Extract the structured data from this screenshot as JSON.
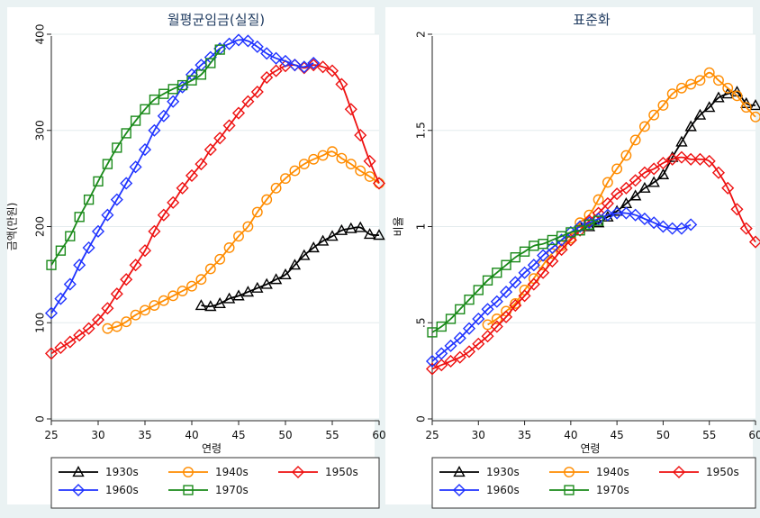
{
  "chart_data": [
    {
      "type": "line",
      "title": "월평균임금(실질)",
      "xlabel": "연령",
      "ylabel": "금액(만원)",
      "xlim": [
        25,
        60
      ],
      "ylim": [
        0,
        400
      ],
      "xticks": [
        "25",
        "30",
        "35",
        "40",
        "45",
        "50",
        "55",
        "60"
      ],
      "yticks": [
        "0",
        "100",
        "200",
        "300",
        "400"
      ],
      "grid": true,
      "legend_position": "bottom",
      "series": [
        {
          "name": "1930s",
          "color": "#000000",
          "marker": "triangle",
          "x": [
            41,
            42,
            43,
            44,
            45,
            46,
            47,
            48,
            49,
            50,
            51,
            52,
            53,
            54,
            55,
            56,
            57,
            58,
            59,
            60
          ],
          "y": [
            118,
            117,
            120,
            125,
            128,
            132,
            136,
            140,
            145,
            150,
            160,
            170,
            178,
            185,
            190,
            196,
            198,
            199,
            192,
            191
          ]
        },
        {
          "name": "1940s",
          "color": "#ff8c00",
          "marker": "circle",
          "x": [
            31,
            32,
            33,
            34,
            35,
            36,
            37,
            38,
            39,
            40,
            41,
            42,
            43,
            44,
            45,
            46,
            47,
            48,
            49,
            50,
            51,
            52,
            53,
            54,
            55,
            56,
            57,
            58,
            59,
            60
          ],
          "y": [
            94,
            96,
            101,
            108,
            113,
            118,
            123,
            128,
            133,
            138,
            145,
            156,
            166,
            178,
            190,
            200,
            215,
            228,
            240,
            250,
            258,
            265,
            270,
            274,
            278,
            271,
            265,
            258,
            252,
            245
          ]
        },
        {
          "name": "1950s",
          "color": "#ee1111",
          "marker": "diamond",
          "x": [
            25,
            26,
            27,
            28,
            29,
            30,
            31,
            32,
            33,
            34,
            35,
            36,
            37,
            38,
            39,
            40,
            41,
            42,
            43,
            44,
            45,
            46,
            47,
            48,
            49,
            50,
            51,
            52,
            53,
            54,
            55,
            56,
            57,
            58,
            59,
            60
          ],
          "y": [
            68,
            74,
            80,
            87,
            94,
            103,
            115,
            130,
            145,
            160,
            175,
            195,
            212,
            225,
            240,
            253,
            265,
            280,
            292,
            305,
            318,
            330,
            340,
            355,
            362,
            367,
            368,
            365,
            368,
            366,
            362,
            348,
            322,
            295,
            268,
            245
          ]
        },
        {
          "name": "1960s",
          "color": "#1f33ff",
          "marker": "diamond",
          "x": [
            25,
            26,
            27,
            28,
            29,
            30,
            31,
            32,
            33,
            34,
            35,
            36,
            37,
            38,
            39,
            40,
            41,
            42,
            43,
            44,
            45,
            46,
            47,
            48,
            49,
            50,
            51,
            52,
            53
          ],
          "y": [
            110,
            125,
            140,
            160,
            178,
            195,
            212,
            228,
            245,
            262,
            280,
            300,
            315,
            330,
            345,
            358,
            368,
            376,
            385,
            390,
            394,
            393,
            387,
            380,
            375,
            372,
            368,
            366,
            370
          ]
        },
        {
          "name": "1970s",
          "color": "#1a8a1a",
          "marker": "square",
          "x": [
            25,
            26,
            27,
            28,
            29,
            30,
            31,
            32,
            33,
            34,
            35,
            36,
            37,
            38,
            39,
            40,
            41,
            42,
            43
          ],
          "y": [
            160,
            175,
            190,
            210,
            228,
            247,
            265,
            282,
            297,
            310,
            322,
            332,
            338,
            343,
            347,
            352,
            358,
            370,
            384
          ]
        }
      ]
    },
    {
      "type": "line",
      "title": "표준화",
      "xlabel": "연령",
      "ylabel": "비율",
      "xlim": [
        25,
        60
      ],
      "ylim": [
        0,
        2
      ],
      "xticks": [
        "25",
        "30",
        "35",
        "40",
        "45",
        "50",
        "55",
        "60"
      ],
      "yticks": [
        "0",
        ".5",
        "1",
        "1.5",
        "2"
      ],
      "grid": true,
      "legend_position": "bottom",
      "series": [
        {
          "name": "1930s",
          "color": "#000000",
          "marker": "triangle",
          "x": [
            41,
            42,
            43,
            44,
            45,
            46,
            47,
            48,
            49,
            50,
            51,
            52,
            53,
            54,
            55,
            56,
            57,
            58,
            59,
            60
          ],
          "y": [
            1.0,
            1.0,
            1.02,
            1.05,
            1.08,
            1.12,
            1.16,
            1.2,
            1.23,
            1.27,
            1.36,
            1.44,
            1.52,
            1.58,
            1.62,
            1.67,
            1.69,
            1.7,
            1.64,
            1.63
          ]
        },
        {
          "name": "1940s",
          "color": "#ff8c00",
          "marker": "circle",
          "x": [
            31,
            32,
            33,
            34,
            35,
            36,
            37,
            38,
            39,
            40,
            41,
            42,
            43,
            44,
            45,
            46,
            47,
            48,
            49,
            50,
            51,
            52,
            53,
            54,
            55,
            56,
            57,
            58,
            59,
            60
          ],
          "y": [
            0.49,
            0.52,
            0.56,
            0.6,
            0.67,
            0.73,
            0.8,
            0.86,
            0.9,
            0.94,
            1.02,
            1.06,
            1.14,
            1.23,
            1.3,
            1.37,
            1.45,
            1.52,
            1.58,
            1.63,
            1.69,
            1.72,
            1.74,
            1.76,
            1.8,
            1.76,
            1.72,
            1.68,
            1.62,
            1.57
          ]
        },
        {
          "name": "1950s",
          "color": "#ee1111",
          "marker": "diamond",
          "x": [
            25,
            26,
            27,
            28,
            29,
            30,
            31,
            32,
            33,
            34,
            35,
            36,
            37,
            38,
            39,
            40,
            41,
            42,
            43,
            44,
            45,
            46,
            47,
            48,
            49,
            50,
            51,
            52,
            53,
            54,
            55,
            56,
            57,
            58,
            59,
            60
          ],
          "y": [
            0.26,
            0.28,
            0.3,
            0.32,
            0.35,
            0.39,
            0.43,
            0.48,
            0.53,
            0.59,
            0.64,
            0.7,
            0.76,
            0.82,
            0.88,
            0.93,
            0.98,
            1.03,
            1.07,
            1.12,
            1.17,
            1.2,
            1.24,
            1.28,
            1.3,
            1.33,
            1.35,
            1.36,
            1.35,
            1.35,
            1.34,
            1.28,
            1.2,
            1.09,
            0.99,
            0.92
          ]
        },
        {
          "name": "1960s",
          "color": "#1f33ff",
          "marker": "diamond",
          "x": [
            25,
            26,
            27,
            28,
            29,
            30,
            31,
            32,
            33,
            34,
            35,
            36,
            37,
            38,
            39,
            40,
            41,
            42,
            43,
            44,
            45,
            46,
            47,
            48,
            49,
            50,
            51,
            52,
            53
          ],
          "y": [
            0.3,
            0.34,
            0.38,
            0.42,
            0.47,
            0.52,
            0.57,
            0.61,
            0.66,
            0.71,
            0.76,
            0.8,
            0.85,
            0.89,
            0.93,
            0.97,
            1.0,
            1.02,
            1.04,
            1.06,
            1.07,
            1.07,
            1.06,
            1.04,
            1.02,
            1.0,
            0.99,
            0.99,
            1.01
          ]
        },
        {
          "name": "1970s",
          "color": "#1a8a1a",
          "marker": "square",
          "x": [
            25,
            26,
            27,
            28,
            29,
            30,
            31,
            32,
            33,
            34,
            35,
            36,
            37,
            38,
            39,
            40,
            41,
            42,
            43
          ],
          "y": [
            0.45,
            0.48,
            0.52,
            0.57,
            0.62,
            0.67,
            0.72,
            0.76,
            0.8,
            0.84,
            0.87,
            0.9,
            0.91,
            0.93,
            0.95,
            0.97,
            0.98,
            1.01,
            1.03
          ]
        }
      ]
    }
  ]
}
